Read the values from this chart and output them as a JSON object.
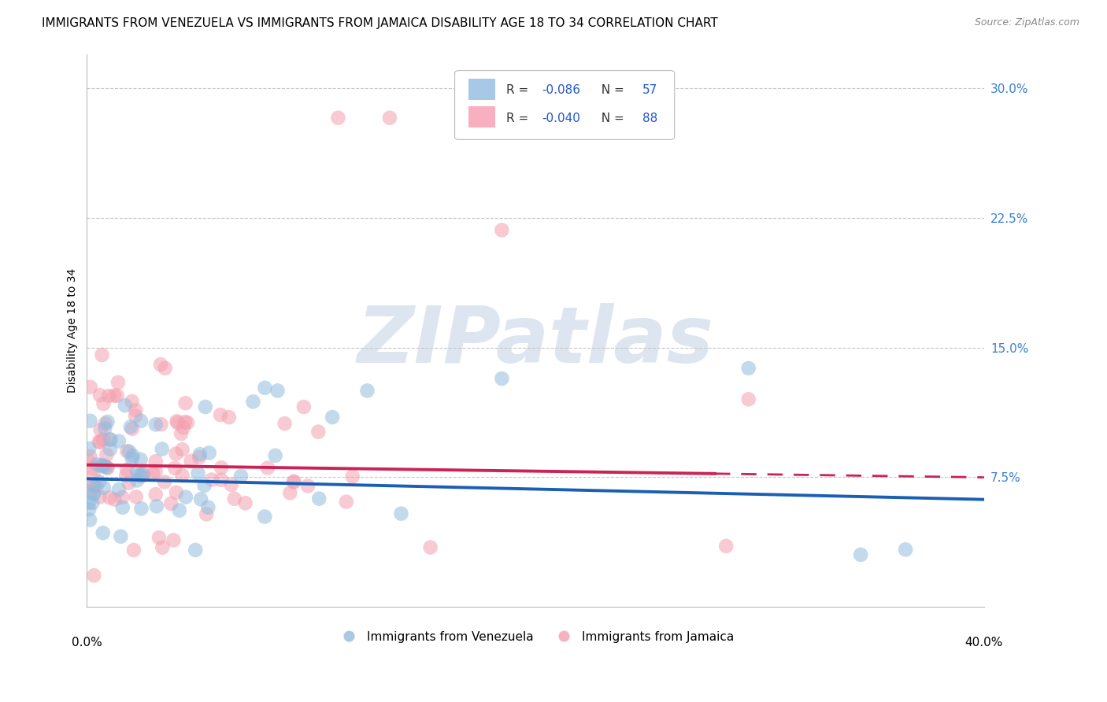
{
  "title": "IMMIGRANTS FROM VENEZUELA VS IMMIGRANTS FROM JAMAICA DISABILITY AGE 18 TO 34 CORRELATION CHART",
  "source": "Source: ZipAtlas.com",
  "ylabel": "Disability Age 18 to 34",
  "xlim": [
    0.0,
    0.4
  ],
  "ylim": [
    0.0,
    0.32
  ],
  "yticks": [
    0.075,
    0.15,
    0.225,
    0.3
  ],
  "ytick_labels": [
    "7.5%",
    "15.0%",
    "22.5%",
    "30.0%"
  ],
  "legend_label_1": "Immigrants from Venezuela",
  "legend_label_2": "Immigrants from Jamaica",
  "R1": -0.086,
  "N1": 57,
  "R2": -0.04,
  "N2": 88,
  "seed": 99,
  "scatter_color_1": "#92bcde",
  "scatter_color_2": "#f4a0b0",
  "line_color_1": "#1a5fb4",
  "line_color_2": "#cc2255",
  "background_color": "#ffffff",
  "grid_color": "#cccccc",
  "title_fontsize": 11,
  "axis_label_fontsize": 10,
  "tick_fontsize": 11,
  "watermark_color": "#dde5f0",
  "watermark_fontsize": 72,
  "legend_box_color": "#a8c8e8",
  "legend_box_color2": "#f8b0c0"
}
